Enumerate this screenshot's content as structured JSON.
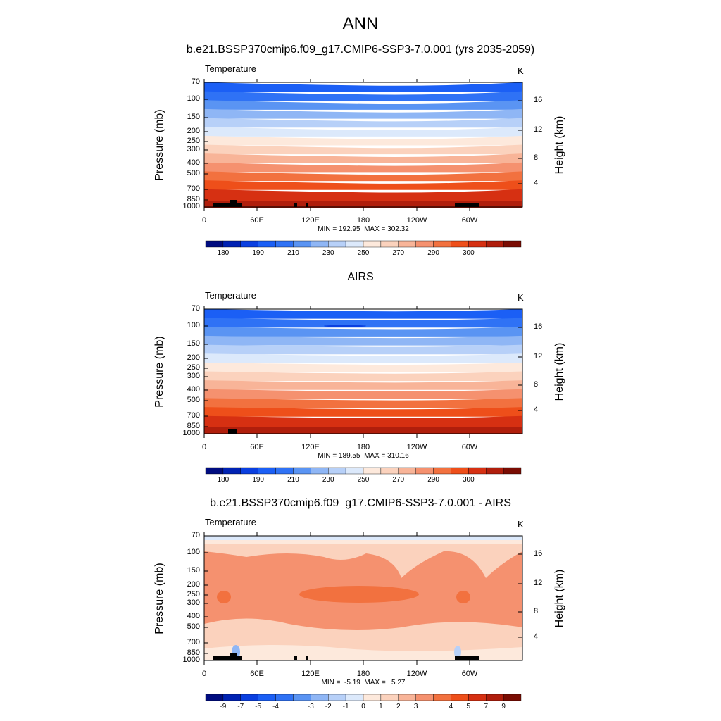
{
  "page": {
    "title": "ANN"
  },
  "chart_data": [
    {
      "type": "heatmap",
      "title": "b.e21.BSSP370cmip6.f09_g17.CMIP6-SSP3-7.0.001 (yrs 2035-2059)",
      "variable": "Temperature",
      "units": "K",
      "stats": "MIN = 192.95  MAX = 302.32",
      "ylabel": "Pressure (mb)",
      "right_ylabel": "Height (km)",
      "x_ticks": [
        "0",
        "60E",
        "120E",
        "180",
        "120W",
        "60W"
      ],
      "y_ticks": [
        "70",
        "100",
        "150",
        "200",
        "250",
        "300",
        "400",
        "500",
        "700",
        "850",
        "1000"
      ],
      "right_ticks": [
        "16",
        "12",
        "8",
        "4"
      ],
      "levels": [
        "180",
        "190",
        "210",
        "230",
        "250",
        "270",
        "290",
        "300"
      ],
      "band_colors": [
        "#1b5ff5",
        "#2f72f5",
        "#5a94f3",
        "#8fb6f5",
        "#b7d0f8",
        "#dce9fb",
        "#fde9dc",
        "#fbd2bd",
        "#f8b498",
        "#f5916f",
        "#f2713f",
        "#ee4f1a",
        "#d63012",
        "#b01e0c"
      ],
      "colorbar_colors": [
        "#000c80",
        "#0022b3",
        "#0a3fe0",
        "#1b5ff5",
        "#2f72f5",
        "#5a94f3",
        "#8fb6f5",
        "#b7d0f8",
        "#dce9fb",
        "#fde9dc",
        "#fbd2bd",
        "#f8b498",
        "#f5916f",
        "#f2713f",
        "#ee4f1a",
        "#d63012",
        "#b01e0c",
        "#7a0c03"
      ]
    },
    {
      "type": "heatmap",
      "title": "AIRS",
      "variable": "Temperature",
      "units": "K",
      "stats": "MIN = 189.55  MAX = 310.16",
      "ylabel": "Pressure (mb)",
      "right_ylabel": "Height (km)",
      "x_ticks": [
        "0",
        "60E",
        "120E",
        "180",
        "120W",
        "60W"
      ],
      "y_ticks": [
        "70",
        "100",
        "150",
        "200",
        "250",
        "300",
        "400",
        "500",
        "700",
        "850",
        "1000"
      ],
      "right_ticks": [
        "16",
        "12",
        "8",
        "4"
      ],
      "levels": [
        "180",
        "190",
        "210",
        "230",
        "250",
        "270",
        "290",
        "300"
      ],
      "band_colors": [
        "#1b5ff5",
        "#2f72f5",
        "#5a94f3",
        "#8fb6f5",
        "#b7d0f8",
        "#dce9fb",
        "#fde9dc",
        "#fbd2bd",
        "#f8b498",
        "#f5916f",
        "#f2713f",
        "#ee4f1a",
        "#d63012",
        "#b01e0c"
      ],
      "colorbar_colors": [
        "#000c80",
        "#0022b3",
        "#0a3fe0",
        "#1b5ff5",
        "#2f72f5",
        "#5a94f3",
        "#8fb6f5",
        "#b7d0f8",
        "#dce9fb",
        "#fde9dc",
        "#fbd2bd",
        "#f8b498",
        "#f5916f",
        "#f2713f",
        "#ee4f1a",
        "#d63012",
        "#b01e0c",
        "#7a0c03"
      ]
    },
    {
      "type": "heatmap",
      "title": "b.e21.BSSP370cmip6.f09_g17.CMIP6-SSP3-7.0.001 - AIRS",
      "variable": "Temperature",
      "units": "K",
      "stats": "MIN =  -5.19  MAX =   5.27",
      "ylabel": "Pressure (mb)",
      "right_ylabel": "Height (km)",
      "x_ticks": [
        "0",
        "60E",
        "120E",
        "180",
        "120W",
        "60W"
      ],
      "y_ticks": [
        "70",
        "100",
        "150",
        "200",
        "250",
        "300",
        "400",
        "500",
        "700",
        "850",
        "1000"
      ],
      "right_ticks": [
        "16",
        "12",
        "8",
        "4"
      ],
      "levels": [
        "-9",
        "-7",
        "-5",
        "-4",
        "-3",
        "-2",
        "-1",
        "0",
        "1",
        "2",
        "3",
        "4",
        "5",
        "7",
        "9"
      ],
      "band_colors": [
        "#f5916f"
      ],
      "colorbar_colors": [
        "#000c80",
        "#0022b3",
        "#0a3fe0",
        "#1b5ff5",
        "#2f72f5",
        "#5a94f3",
        "#8fb6f5",
        "#b7d0f8",
        "#dce9fb",
        "#fde9dc",
        "#fbd2bd",
        "#f8b498",
        "#f5916f",
        "#f2713f",
        "#ee4f1a",
        "#d63012",
        "#b01e0c",
        "#7a0c03"
      ]
    }
  ]
}
